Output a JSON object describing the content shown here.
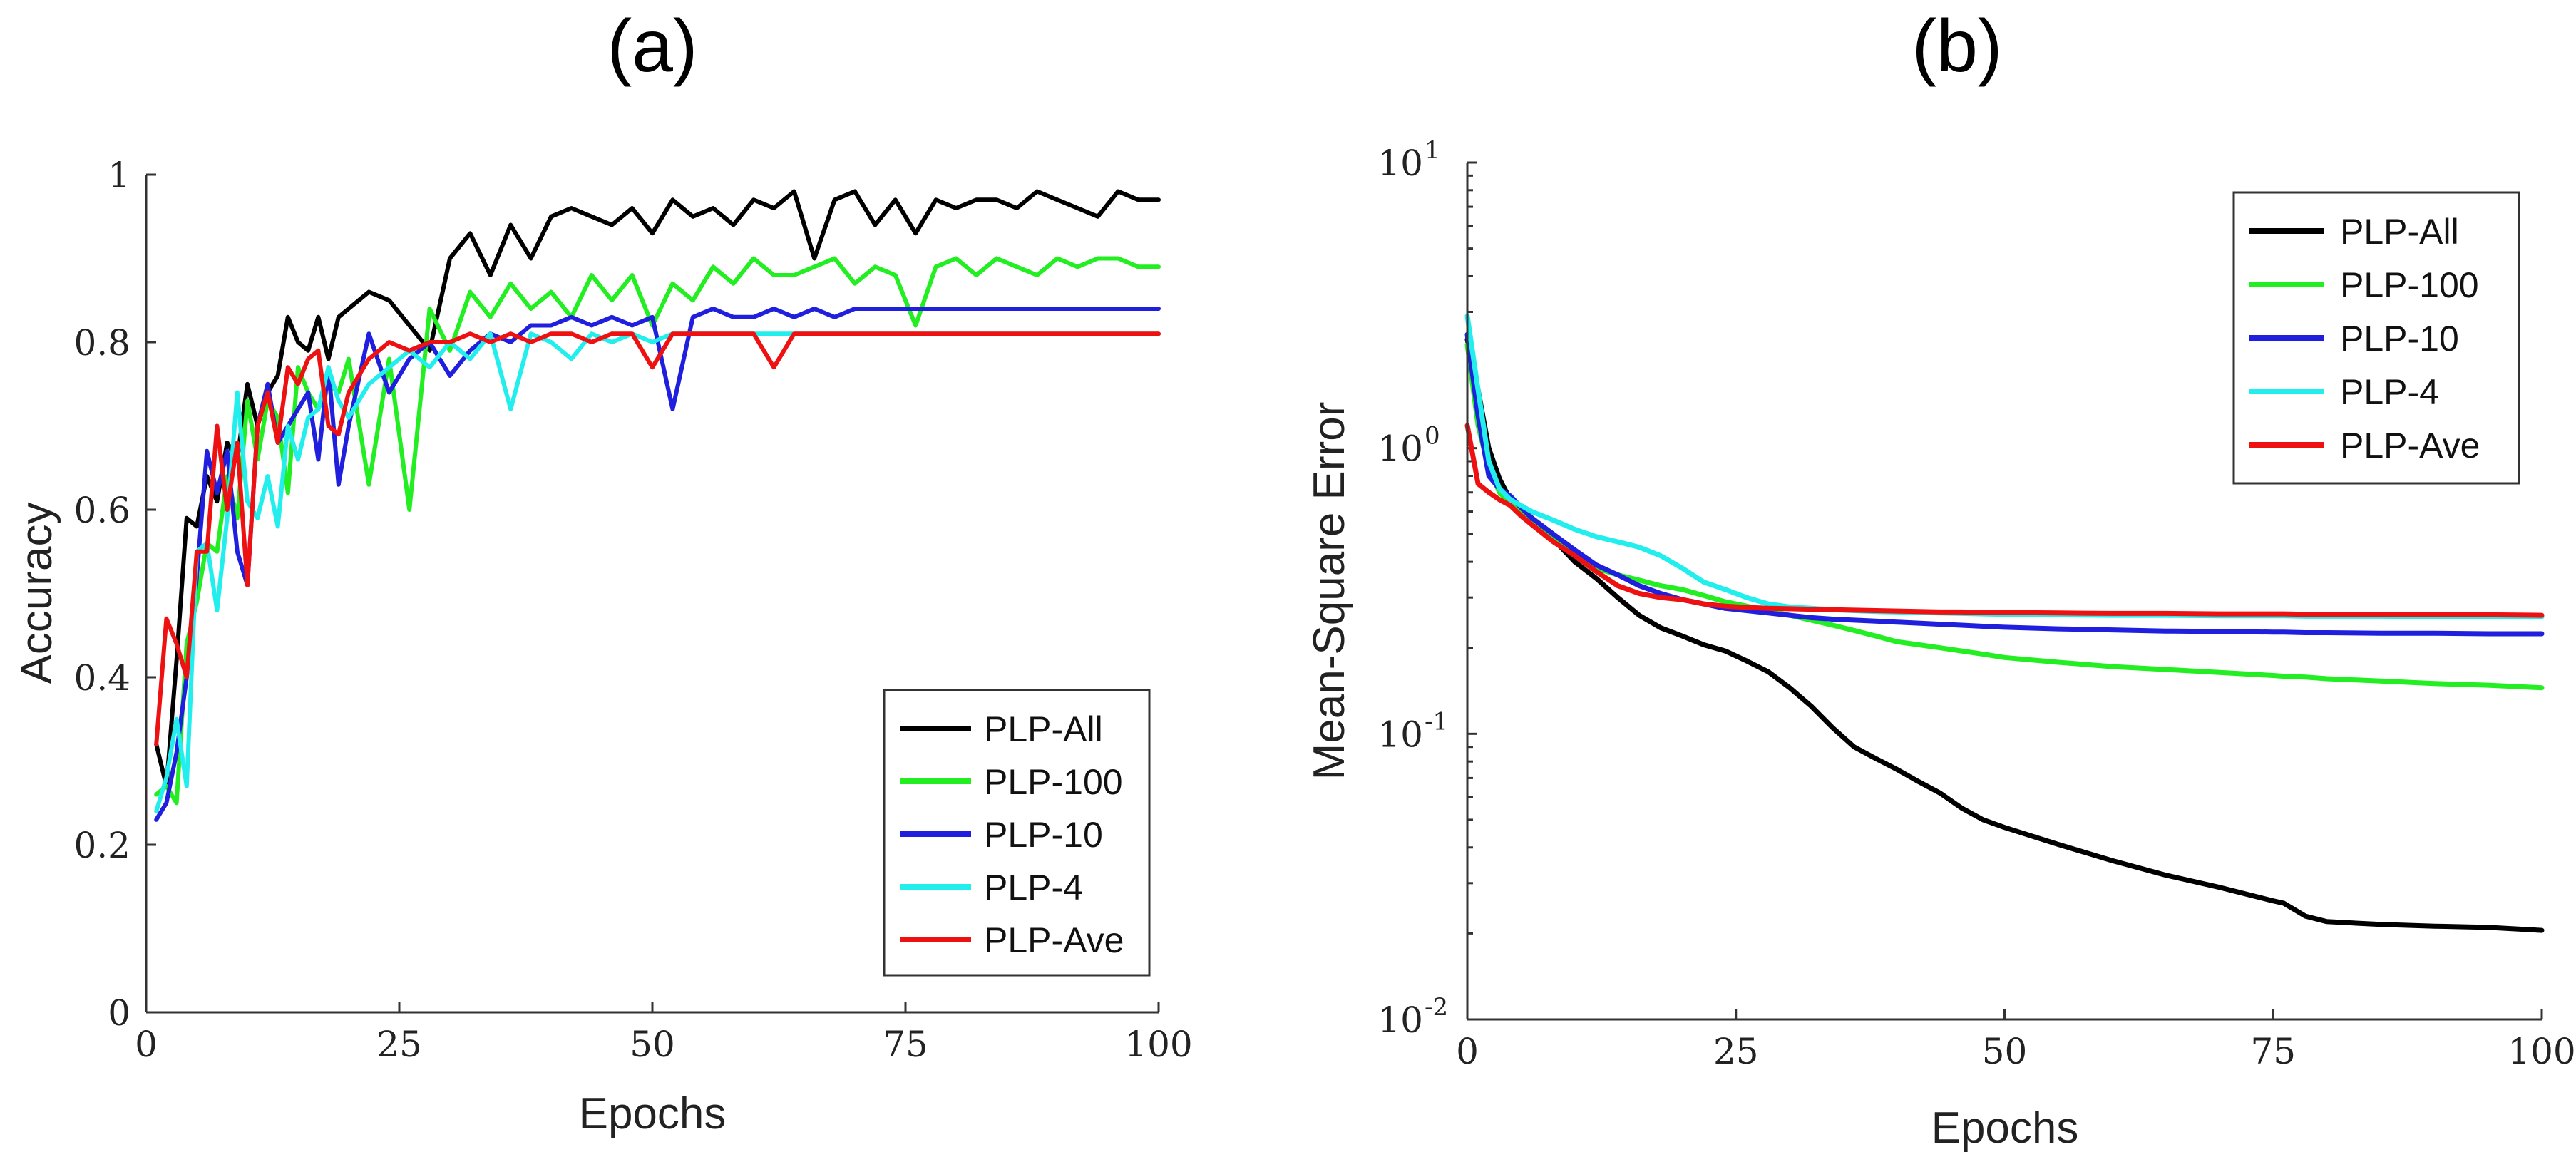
{
  "chart_data": [
    {
      "panel_label": "(a)",
      "type": "line",
      "title": "",
      "xlabel": "Epochs",
      "ylabel": "Accuracy",
      "xlim": [
        0,
        100
      ],
      "ylim": [
        0,
        1
      ],
      "yscale": "linear",
      "x_ticks": [
        0,
        25,
        50,
        75,
        100
      ],
      "x_tick_labels": [
        "0",
        "25",
        "50",
        "75",
        "100"
      ],
      "y_ticks": [
        0,
        0.2,
        0.4,
        0.6,
        0.8,
        1
      ],
      "y_tick_labels": [
        "0",
        "0.2",
        "0.4",
        "0.6",
        "0.8",
        "1"
      ],
      "legend_position": "bottom-right",
      "x": [
        1,
        2,
        3,
        4,
        5,
        6,
        7,
        8,
        9,
        10,
        11,
        12,
        13,
        14,
        15,
        16,
        17,
        18,
        19,
        20,
        22,
        24,
        26,
        28,
        30,
        32,
        34,
        36,
        38,
        40,
        42,
        44,
        46,
        48,
        50,
        52,
        54,
        56,
        58,
        60,
        62,
        64,
        66,
        68,
        70,
        72,
        74,
        76,
        78,
        80,
        82,
        84,
        86,
        88,
        90,
        92,
        94,
        96,
        98,
        100
      ],
      "series": [
        {
          "name": "PLP-All",
          "color": "#000000",
          "values": [
            0.32,
            0.27,
            0.42,
            0.59,
            0.58,
            0.64,
            0.61,
            0.68,
            0.66,
            0.75,
            0.7,
            0.74,
            0.76,
            0.83,
            0.8,
            0.79,
            0.83,
            0.78,
            0.83,
            0.84,
            0.86,
            0.85,
            0.82,
            0.79,
            0.9,
            0.93,
            0.88,
            0.94,
            0.9,
            0.95,
            0.96,
            0.95,
            0.94,
            0.96,
            0.93,
            0.97,
            0.95,
            0.96,
            0.94,
            0.97,
            0.96,
            0.98,
            0.9,
            0.97,
            0.98,
            0.94,
            0.97,
            0.93,
            0.97,
            0.96,
            0.97,
            0.97,
            0.96,
            0.98,
            0.97,
            0.96,
            0.95,
            0.98,
            0.97,
            0.97
          ]
        },
        {
          "name": "PLP-100",
          "color": "#22ee22",
          "values": [
            0.26,
            0.27,
            0.25,
            0.44,
            0.49,
            0.56,
            0.55,
            0.64,
            0.59,
            0.73,
            0.66,
            0.73,
            0.71,
            0.62,
            0.77,
            0.74,
            0.72,
            0.75,
            0.74,
            0.78,
            0.63,
            0.78,
            0.6,
            0.84,
            0.79,
            0.86,
            0.83,
            0.87,
            0.84,
            0.86,
            0.83,
            0.88,
            0.85,
            0.88,
            0.82,
            0.87,
            0.85,
            0.89,
            0.87,
            0.9,
            0.88,
            0.88,
            0.89,
            0.9,
            0.87,
            0.89,
            0.88,
            0.82,
            0.89,
            0.9,
            0.88,
            0.9,
            0.89,
            0.88,
            0.9,
            0.89,
            0.9,
            0.9,
            0.89,
            0.89
          ]
        },
        {
          "name": "PLP-10",
          "color": "#1f1fdd",
          "values": [
            0.23,
            0.25,
            0.31,
            0.4,
            0.52,
            0.67,
            0.62,
            0.67,
            0.55,
            0.51,
            0.7,
            0.75,
            0.68,
            0.7,
            0.72,
            0.74,
            0.66,
            0.77,
            0.63,
            0.7,
            0.81,
            0.74,
            0.78,
            0.8,
            0.76,
            0.79,
            0.81,
            0.8,
            0.82,
            0.82,
            0.83,
            0.82,
            0.83,
            0.82,
            0.83,
            0.72,
            0.83,
            0.84,
            0.83,
            0.83,
            0.84,
            0.83,
            0.84,
            0.83,
            0.84,
            0.84,
            0.84,
            0.84,
            0.84,
            0.84,
            0.84,
            0.84,
            0.84,
            0.84,
            0.84,
            0.84,
            0.84,
            0.84,
            0.84,
            0.84
          ]
        },
        {
          "name": "PLP-4",
          "color": "#22eeee",
          "values": [
            0.24,
            0.28,
            0.35,
            0.27,
            0.55,
            0.56,
            0.48,
            0.59,
            0.74,
            0.61,
            0.59,
            0.64,
            0.58,
            0.7,
            0.66,
            0.71,
            0.72,
            0.77,
            0.73,
            0.71,
            0.75,
            0.77,
            0.79,
            0.77,
            0.8,
            0.78,
            0.81,
            0.72,
            0.81,
            0.8,
            0.78,
            0.81,
            0.8,
            0.81,
            0.8,
            0.81,
            0.81,
            0.81,
            0.81,
            0.81,
            0.81,
            0.81,
            0.81,
            0.81,
            0.81,
            0.81,
            0.81,
            0.81,
            0.81,
            0.81,
            0.81,
            0.81,
            0.81,
            0.81,
            0.81,
            0.81,
            0.81,
            0.81,
            0.81,
            0.81
          ]
        },
        {
          "name": "PLP-Ave",
          "color": "#ee1111",
          "values": [
            0.32,
            0.47,
            0.44,
            0.4,
            0.55,
            0.55,
            0.7,
            0.6,
            0.68,
            0.51,
            0.7,
            0.74,
            0.68,
            0.77,
            0.75,
            0.78,
            0.79,
            0.7,
            0.69,
            0.74,
            0.78,
            0.8,
            0.79,
            0.8,
            0.8,
            0.81,
            0.8,
            0.81,
            0.8,
            0.81,
            0.81,
            0.8,
            0.81,
            0.81,
            0.77,
            0.81,
            0.81,
            0.81,
            0.81,
            0.81,
            0.77,
            0.81,
            0.81,
            0.81,
            0.81,
            0.81,
            0.81,
            0.81,
            0.81,
            0.81,
            0.81,
            0.81,
            0.81,
            0.81,
            0.81,
            0.81,
            0.81,
            0.81,
            0.81,
            0.81
          ]
        }
      ]
    },
    {
      "panel_label": "(b)",
      "type": "line",
      "title": "",
      "xlabel": "Epochs",
      "ylabel": "Mean-Square Error",
      "xlim": [
        0,
        100
      ],
      "ylim": [
        0.01,
        10
      ],
      "yscale": "log",
      "x_ticks": [
        0,
        25,
        50,
        75,
        100
      ],
      "x_tick_labels": [
        "0",
        "25",
        "50",
        "75",
        "100"
      ],
      "y_ticks": [
        0.01,
        0.1,
        1,
        10
      ],
      "y_tick_labels": [
        {
          "base": "10",
          "exp": "-2"
        },
        {
          "base": "10",
          "exp": "-1"
        },
        {
          "base": "10",
          "exp": "0"
        },
        {
          "base": "10",
          "exp": "1"
        }
      ],
      "legend_position": "top-right",
      "x": [
        0,
        1,
        2,
        3,
        4,
        5,
        6,
        8,
        10,
        12,
        14,
        16,
        18,
        20,
        22,
        24,
        26,
        28,
        30,
        32,
        34,
        36,
        38,
        40,
        42,
        44,
        46,
        48,
        50,
        55,
        60,
        65,
        70,
        75,
        76,
        78,
        80,
        85,
        90,
        95,
        100
      ],
      "series": [
        {
          "name": "PLP-All",
          "color": "#000000",
          "values": [
            2.4,
            1.6,
            1.0,
            0.78,
            0.66,
            0.6,
            0.55,
            0.48,
            0.4,
            0.35,
            0.3,
            0.26,
            0.235,
            0.22,
            0.205,
            0.195,
            0.18,
            0.165,
            0.145,
            0.125,
            0.105,
            0.09,
            0.082,
            0.075,
            0.068,
            0.062,
            0.055,
            0.05,
            0.047,
            0.041,
            0.036,
            0.032,
            0.029,
            0.026,
            0.0255,
            0.023,
            0.022,
            0.0215,
            0.0212,
            0.021,
            0.0205
          ]
        },
        {
          "name": "PLP-100",
          "color": "#22ee22",
          "values": [
            2.3,
            1.2,
            0.85,
            0.7,
            0.64,
            0.6,
            0.56,
            0.48,
            0.42,
            0.38,
            0.36,
            0.345,
            0.33,
            0.32,
            0.305,
            0.29,
            0.28,
            0.27,
            0.26,
            0.25,
            0.24,
            0.23,
            0.22,
            0.21,
            0.205,
            0.2,
            0.195,
            0.19,
            0.185,
            0.178,
            0.172,
            0.168,
            0.164,
            0.16,
            0.159,
            0.158,
            0.156,
            0.153,
            0.15,
            0.148,
            0.145
          ]
        },
        {
          "name": "PLP-10",
          "color": "#1f1fdd",
          "values": [
            2.5,
            1.3,
            0.8,
            0.72,
            0.68,
            0.62,
            0.57,
            0.5,
            0.44,
            0.39,
            0.36,
            0.33,
            0.31,
            0.295,
            0.285,
            0.275,
            0.27,
            0.265,
            0.26,
            0.255,
            0.252,
            0.25,
            0.248,
            0.246,
            0.244,
            0.242,
            0.24,
            0.238,
            0.236,
            0.233,
            0.231,
            0.229,
            0.228,
            0.227,
            0.227,
            0.226,
            0.226,
            0.225,
            0.225,
            0.224,
            0.224
          ]
        },
        {
          "name": "PLP-4",
          "color": "#22eeee",
          "values": [
            2.9,
            1.6,
            0.9,
            0.72,
            0.66,
            0.63,
            0.6,
            0.56,
            0.52,
            0.49,
            0.47,
            0.45,
            0.42,
            0.38,
            0.34,
            0.32,
            0.3,
            0.285,
            0.278,
            0.275,
            0.272,
            0.27,
            0.268,
            0.267,
            0.266,
            0.265,
            0.264,
            0.263,
            0.262,
            0.261,
            0.26,
            0.26,
            0.259,
            0.259,
            0.259,
            0.258,
            0.258,
            0.258,
            0.257,
            0.257,
            0.257
          ]
        },
        {
          "name": "PLP-Ave",
          "color": "#ee1111",
          "values": [
            1.2,
            0.75,
            0.7,
            0.66,
            0.63,
            0.58,
            0.54,
            0.47,
            0.42,
            0.37,
            0.33,
            0.31,
            0.3,
            0.295,
            0.285,
            0.28,
            0.277,
            0.275,
            0.274,
            0.273,
            0.272,
            0.271,
            0.27,
            0.269,
            0.268,
            0.267,
            0.267,
            0.266,
            0.266,
            0.265,
            0.264,
            0.264,
            0.263,
            0.263,
            0.263,
            0.262,
            0.262,
            0.262,
            0.261,
            0.261,
            0.26
          ]
        }
      ]
    }
  ]
}
